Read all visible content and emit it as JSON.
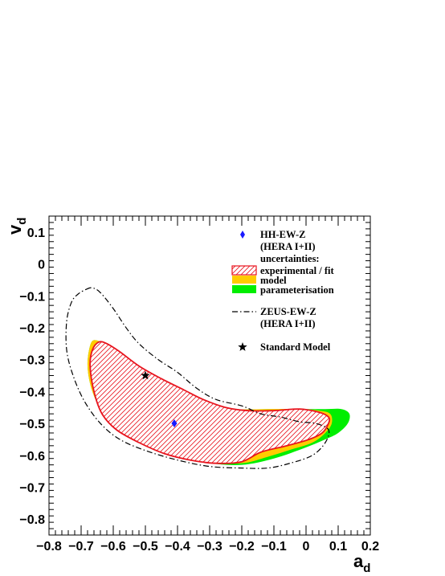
{
  "chart_data": {
    "type": "contour",
    "xlabel": "a",
    "xlabel_sub": "d",
    "ylabel": "v",
    "ylabel_sub": "d",
    "xlim": [
      -0.8,
      0.2
    ],
    "ylim": [
      -0.85,
      0.15
    ],
    "x_ticks": [
      -0.8,
      -0.7,
      -0.6,
      -0.5,
      -0.4,
      -0.3,
      -0.2,
      -0.1,
      0,
      0.1,
      0.2
    ],
    "x_tick_labels": [
      "−0.8",
      "−0.7",
      "−0.6",
      "−0.5",
      "−0.4",
      "−0.3",
      "−0.2",
      "−0.1",
      "0",
      "0.1",
      "0.2"
    ],
    "y_ticks": [
      0.1,
      0,
      -0.1,
      -0.2,
      -0.3,
      -0.4,
      -0.5,
      -0.6,
      -0.7,
      -0.8
    ],
    "y_tick_labels": [
      "0.1",
      "0",
      "−0.1",
      "−0.2",
      "−0.3",
      "−0.4",
      "−0.5",
      "−0.6",
      "−0.7",
      "−0.8"
    ],
    "colors": {
      "experimental": "#e8141e",
      "model": "#ffcc00",
      "parameterisation": "#00ee00",
      "zeus": "#000000",
      "hh_point": "#1a1aff"
    },
    "legend": [
      {
        "key": "hh",
        "lines": [
          "HH-EW-Z",
          "(HERA I+II)"
        ],
        "marker": "diamond"
      },
      {
        "key": "uncertainties",
        "lines": [
          "uncertainties:"
        ],
        "marker": "none"
      },
      {
        "key": "experimental",
        "lines": [
          "experimental / fit"
        ],
        "marker": "hatched-box"
      },
      {
        "key": "model",
        "lines": [
          "model"
        ],
        "marker": "filled-box"
      },
      {
        "key": "parameterisation",
        "lines": [
          "parameterisation"
        ],
        "marker": "filled-box"
      },
      {
        "key": "zeus",
        "lines": [
          "ZEUS-EW-Z",
          "(HERA I+II)"
        ],
        "marker": "dash-dot-line"
      },
      {
        "key": "sm",
        "lines": [
          "Standard Model"
        ],
        "marker": "star"
      }
    ],
    "points": {
      "hh_ew_z": {
        "x": -0.41,
        "y": -0.5
      },
      "standard_model": {
        "x": -0.5,
        "y": -0.35
      }
    },
    "contours": {
      "parameterisation": [
        [
          -0.67,
          -0.25
        ],
        [
          -0.65,
          -0.24
        ],
        [
          -0.62,
          -0.26
        ],
        [
          -0.58,
          -0.3
        ],
        [
          -0.52,
          -0.35
        ],
        [
          -0.45,
          -0.39
        ],
        [
          -0.38,
          -0.42
        ],
        [
          -0.3,
          -0.44
        ],
        [
          -0.22,
          -0.455
        ],
        [
          -0.12,
          -0.455
        ],
        [
          -0.02,
          -0.455
        ],
        [
          0.06,
          -0.455
        ],
        [
          0.11,
          -0.455
        ],
        [
          0.135,
          -0.47
        ],
        [
          0.13,
          -0.5
        ],
        [
          0.1,
          -0.53
        ],
        [
          0.06,
          -0.55
        ],
        [
          0.0,
          -0.575
        ],
        [
          -0.1,
          -0.61
        ],
        [
          -0.2,
          -0.63
        ],
        [
          -0.3,
          -0.625
        ],
        [
          -0.4,
          -0.605
        ],
        [
          -0.5,
          -0.565
        ],
        [
          -0.58,
          -0.52
        ],
        [
          -0.63,
          -0.47
        ],
        [
          -0.665,
          -0.4
        ],
        [
          -0.68,
          -0.32
        ]
      ],
      "model": [
        [
          -0.67,
          -0.25
        ],
        [
          -0.65,
          -0.24
        ],
        [
          -0.62,
          -0.26
        ],
        [
          -0.58,
          -0.3
        ],
        [
          -0.52,
          -0.35
        ],
        [
          -0.45,
          -0.39
        ],
        [
          -0.38,
          -0.42
        ],
        [
          -0.3,
          -0.44
        ],
        [
          -0.22,
          -0.455
        ],
        [
          -0.12,
          -0.455
        ],
        [
          -0.02,
          -0.455
        ],
        [
          0.04,
          -0.46
        ],
        [
          0.075,
          -0.47
        ],
        [
          0.08,
          -0.5
        ],
        [
          0.06,
          -0.53
        ],
        [
          0.02,
          -0.56
        ],
        [
          -0.04,
          -0.58
        ],
        [
          -0.12,
          -0.605
        ],
        [
          -0.2,
          -0.625
        ],
        [
          -0.3,
          -0.62
        ],
        [
          -0.4,
          -0.6
        ],
        [
          -0.5,
          -0.565
        ],
        [
          -0.58,
          -0.52
        ],
        [
          -0.63,
          -0.47
        ],
        [
          -0.665,
          -0.4
        ],
        [
          -0.68,
          -0.32
        ]
      ],
      "experimental": [
        [
          -0.665,
          -0.27
        ],
        [
          -0.645,
          -0.245
        ],
        [
          -0.62,
          -0.25
        ],
        [
          -0.58,
          -0.275
        ],
        [
          -0.52,
          -0.32
        ],
        [
          -0.45,
          -0.36
        ],
        [
          -0.38,
          -0.395
        ],
        [
          -0.32,
          -0.425
        ],
        [
          -0.25,
          -0.45
        ],
        [
          -0.18,
          -0.46
        ],
        [
          -0.1,
          -0.46
        ],
        [
          -0.02,
          -0.455
        ],
        [
          0.04,
          -0.465
        ],
        [
          0.07,
          -0.48
        ],
        [
          0.07,
          -0.5
        ],
        [
          0.05,
          -0.53
        ],
        [
          0.01,
          -0.55
        ],
        [
          -0.06,
          -0.57
        ],
        [
          -0.14,
          -0.59
        ],
        [
          -0.2,
          -0.62
        ],
        [
          -0.28,
          -0.625
        ],
        [
          -0.36,
          -0.615
        ],
        [
          -0.44,
          -0.595
        ],
        [
          -0.52,
          -0.56
        ],
        [
          -0.59,
          -0.52
        ],
        [
          -0.635,
          -0.47
        ],
        [
          -0.66,
          -0.4
        ],
        [
          -0.672,
          -0.32
        ]
      ],
      "zeus": [
        [
          -0.685,
          -0.08
        ],
        [
          -0.665,
          -0.075
        ],
        [
          -0.64,
          -0.09
        ],
        [
          -0.6,
          -0.14
        ],
        [
          -0.56,
          -0.2
        ],
        [
          -0.52,
          -0.25
        ],
        [
          -0.46,
          -0.3
        ],
        [
          -0.4,
          -0.34
        ],
        [
          -0.34,
          -0.39
        ],
        [
          -0.28,
          -0.425
        ],
        [
          -0.2,
          -0.445
        ],
        [
          -0.14,
          -0.47
        ],
        [
          -0.08,
          -0.48
        ],
        [
          -0.02,
          -0.495
        ],
        [
          0.03,
          -0.5
        ],
        [
          0.07,
          -0.52
        ],
        [
          0.06,
          -0.56
        ],
        [
          0.02,
          -0.6
        ],
        [
          -0.05,
          -0.625
        ],
        [
          -0.12,
          -0.64
        ],
        [
          -0.2,
          -0.64
        ],
        [
          -0.3,
          -0.635
        ],
        [
          -0.4,
          -0.615
        ],
        [
          -0.5,
          -0.585
        ],
        [
          -0.58,
          -0.55
        ],
        [
          -0.64,
          -0.5
        ],
        [
          -0.69,
          -0.43
        ],
        [
          -0.725,
          -0.35
        ],
        [
          -0.745,
          -0.27
        ],
        [
          -0.745,
          -0.18
        ],
        [
          -0.73,
          -0.12
        ],
        [
          -0.71,
          -0.095
        ]
      ]
    }
  }
}
